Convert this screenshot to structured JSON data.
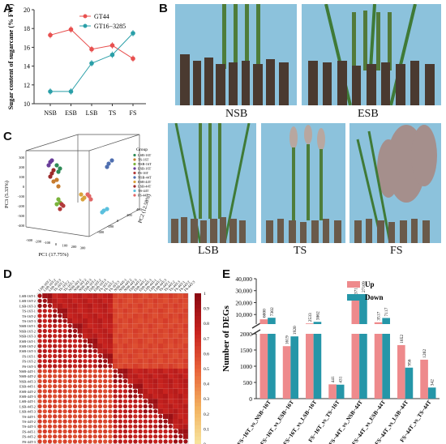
{
  "panels": {
    "a": "A",
    "b": "B",
    "c": "C",
    "d": "D",
    "e": "E"
  },
  "panel_b": {
    "labels": [
      "NSB",
      "ESB",
      "LSB",
      "TS",
      "FS"
    ]
  },
  "chart_data": [
    {
      "panel": "A",
      "type": "line",
      "categories": [
        "NSB",
        "ESB",
        "LSB",
        "TS",
        "FS"
      ],
      "series": [
        {
          "name": "GT44",
          "values": [
            17.3,
            17.9,
            15.8,
            16.2,
            14.8
          ],
          "color": "#e8504f"
        },
        {
          "name": "GT16−3285",
          "values": [
            11.3,
            11.3,
            14.3,
            15.2,
            17.5
          ],
          "color": "#2a9fa8"
        }
      ],
      "ylabel": "Sugar content of sugarcane (% FW)",
      "ylim": [
        10,
        20
      ],
      "yticks": [
        "10",
        "12",
        "14",
        "16",
        "18",
        "20"
      ]
    },
    {
      "panel": "C",
      "type": "scatter",
      "xlabel": "PC1 (17.75%)",
      "ylabel": "PC2 (12.58%)",
      "zlabel": "PC3 (5.33%)",
      "x_ticks": [
        "-300",
        "-200",
        "-100",
        "0",
        "100",
        "200",
        "300"
      ],
      "y_ticks": [
        "-400",
        "-200",
        "0",
        "200",
        "400"
      ],
      "z_ticks": [
        "-400",
        "-300",
        "-200",
        "-100",
        "0",
        "100",
        "200",
        "300"
      ],
      "legend_title": "Group",
      "groups": [
        "LSB-16T",
        "TS-16T",
        "NSB-16T",
        "ESB-16T",
        "FS-16T",
        "NSB-44T",
        "ESB-44T",
        "LSB-44T",
        "TS-44T",
        "FS-44T"
      ],
      "group_colors": [
        "#2e8b57",
        "#c77c2e",
        "#7ab33b",
        "#6a3d9a",
        "#b23a3a",
        "#4f6fb0",
        "#d9a23c",
        "#9c2b2b",
        "#5bc0de",
        "#e06666"
      ]
    },
    {
      "panel": "D",
      "type": "heatmap",
      "row_labels": [
        "LSB-16T-1",
        "LSB-16T-2",
        "LSB-16T-3",
        "TS-16T-1",
        "TS-16T-2",
        "TS-16T-3",
        "NSB-16T-1",
        "NSB-16T-2",
        "NSB-16T-3",
        "ESB-16T-1",
        "ESB-16T-2",
        "ESB-16T-3",
        "FS-16T-1",
        "FS-16T-2",
        "FS-16T-3",
        "NSB-44T-1",
        "NSB-44T-2",
        "NSB-44T-3",
        "ESB-44T-1",
        "ESB-44T-2",
        "ESB-44T-3",
        "LSB-44T-1",
        "LSB-44T-2",
        "LSB-44T-3",
        "TS-44T-1",
        "TS-44T-2",
        "TS-44T-3",
        "FS-44T-1",
        "FS-44T-2",
        "FS-44T-3"
      ],
      "colorbar_ticks": [
        "0",
        "0.1",
        "0.2",
        "0.3",
        "0.4",
        "0.5",
        "0.6",
        "0.7",
        "0.8",
        "0.9",
        "1"
      ],
      "colorscale": [
        "#f7e7a2",
        "#f2b25f",
        "#e8643a",
        "#c8231f",
        "#8c0a12"
      ]
    },
    {
      "panel": "E",
      "type": "bar",
      "categories": [
        "FS−16T_vs_NSB−16T",
        "FS−16T_vs_ESB−16T",
        "FS−16T_vs_LSB−16T",
        "FS−16T_vs_TS−16T",
        "FS−44T_vs_NSB−44T",
        "FS−44T_vs_ESB−44T",
        "FS−44T_vs_LSB−44T",
        "FS−44T_vs_TS−44T"
      ],
      "series": [
        {
          "name": "Up",
          "values": [
            6000,
            1619,
            2533,
            441,
            23714,
            3517,
            1652,
            1202
          ],
          "color": "#ee8a8c"
        },
        {
          "name": "Down",
          "values": [
            7302,
            1920,
            3862,
            431,
            27109,
            7117,
            956,
            342
          ],
          "color": "#2596a8"
        }
      ],
      "ylabel": "Number of DEGs",
      "y_broken": true,
      "ylim_lower": [
        0,
        2000
      ],
      "ylim_upper": [
        2000,
        40000
      ],
      "yticks_lower": [
        "0",
        "500",
        "1000",
        "1500",
        "2000"
      ],
      "yticks_upper": [
        "10,000",
        "20,000",
        "30,000",
        "40,000"
      ]
    }
  ]
}
